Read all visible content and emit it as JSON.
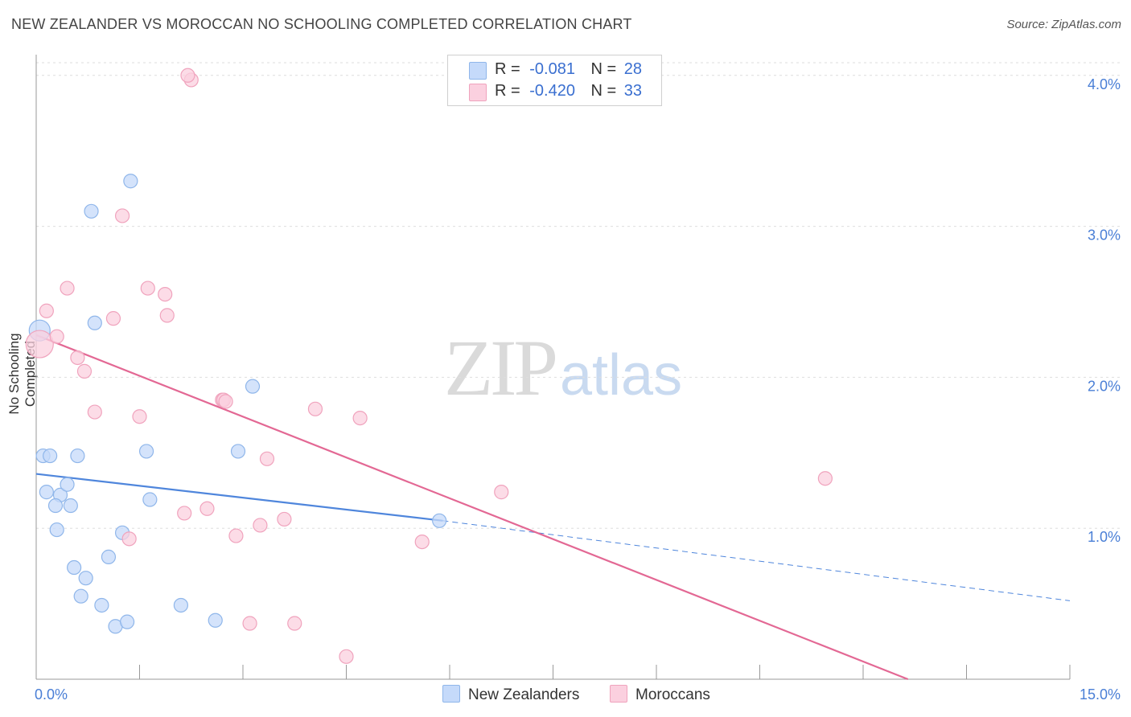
{
  "title": "NEW ZEALANDER VS MOROCCAN NO SCHOOLING COMPLETED CORRELATION CHART",
  "source": "Source: ZipAtlas.com",
  "watermark": {
    "zip": "ZIP",
    "atlas": "atlas"
  },
  "legend": {
    "r_label": "R =",
    "n_label": "N =",
    "rows": [
      {
        "r": "-0.081",
        "n": "28",
        "color": "#8fb6ea",
        "fill": "#c5dafa"
      },
      {
        "r": "-0.420",
        "n": "33",
        "color": "#f0a3bd",
        "fill": "#fbd0df"
      }
    ]
  },
  "bottom_legend": [
    {
      "label": "New Zealanders",
      "color": "#8fb6ea",
      "fill": "#c5dafa"
    },
    {
      "label": "Moroccans",
      "color": "#f0a3bd",
      "fill": "#fbd0df"
    }
  ],
  "chart_data": {
    "type": "scatter",
    "title": "NEW ZEALANDER VS MOROCCAN NO SCHOOLING COMPLETED CORRELATION CHART",
    "xlabel": "",
    "ylabel": "No Schooling Completed",
    "xlim": [
      0,
      15
    ],
    "ylim": [
      0,
      4.1
    ],
    "x_tick_labels": [
      {
        "value": 0,
        "label": "0.0%"
      },
      {
        "value": 15,
        "label": "15.0%"
      }
    ],
    "y_tick_labels": [
      {
        "value": 1,
        "label": "1.0%"
      },
      {
        "value": 2,
        "label": "2.0%"
      },
      {
        "value": 3,
        "label": "3.0%"
      },
      {
        "value": 4,
        "label": "4.0%"
      }
    ],
    "x_minor_ticks": [
      0,
      1.5,
      3,
      4.5,
      6,
      7.5,
      9,
      10.5,
      12,
      13.5,
      15
    ],
    "series": [
      {
        "name": "New Zealanders",
        "color": "#4f86dc",
        "point_fill": "#c5dafa",
        "point_stroke": "#8fb6ea",
        "points": [
          [
            0.05,
            2.31
          ],
          [
            0.1,
            1.48
          ],
          [
            0.2,
            1.48
          ],
          [
            0.15,
            1.24
          ],
          [
            0.35,
            1.22
          ],
          [
            0.28,
            1.15
          ],
          [
            0.5,
            1.15
          ],
          [
            0.45,
            1.29
          ],
          [
            0.6,
            1.48
          ],
          [
            0.85,
            2.36
          ],
          [
            0.8,
            3.1
          ],
          [
            1.37,
            3.3
          ],
          [
            0.55,
            0.74
          ],
          [
            0.65,
            0.55
          ],
          [
            0.72,
            0.67
          ],
          [
            1.05,
            0.81
          ],
          [
            1.25,
            0.97
          ],
          [
            0.95,
            0.49
          ],
          [
            1.15,
            0.35
          ],
          [
            1.32,
            0.38
          ],
          [
            1.65,
            1.19
          ],
          [
            1.6,
            1.51
          ],
          [
            2.1,
            0.49
          ],
          [
            2.6,
            0.39
          ],
          [
            2.93,
            1.51
          ],
          [
            3.14,
            1.94
          ],
          [
            5.85,
            1.05
          ],
          [
            0.3,
            0.99
          ]
        ],
        "trend": {
          "x0": 0,
          "y0": 1.36,
          "x1": 5.9,
          "y1": 1.05,
          "dash_to_x": 15,
          "dash_to_y": 0.52
        }
      },
      {
        "name": "Moroccans",
        "color": "#e36894",
        "point_fill": "#fbd0df",
        "point_stroke": "#f0a3bd",
        "points": [
          [
            0.05,
            2.22
          ],
          [
            0.15,
            2.44
          ],
          [
            0.45,
            2.59
          ],
          [
            0.3,
            2.27
          ],
          [
            0.6,
            2.13
          ],
          [
            0.7,
            2.04
          ],
          [
            0.85,
            1.77
          ],
          [
            1.12,
            2.39
          ],
          [
            1.25,
            3.07
          ],
          [
            1.62,
            2.59
          ],
          [
            1.87,
            2.55
          ],
          [
            1.9,
            2.41
          ],
          [
            2.25,
            3.97
          ],
          [
            2.2,
            4.0
          ],
          [
            1.5,
            1.74
          ],
          [
            2.7,
            1.85
          ],
          [
            2.72,
            1.85
          ],
          [
            4.05,
            1.79
          ],
          [
            4.7,
            1.73
          ],
          [
            3.35,
            1.46
          ],
          [
            2.15,
            1.1
          ],
          [
            2.48,
            1.13
          ],
          [
            2.9,
            0.95
          ],
          [
            3.25,
            1.02
          ],
          [
            3.6,
            1.06
          ],
          [
            1.35,
            0.93
          ],
          [
            3.1,
            0.37
          ],
          [
            3.75,
            0.37
          ],
          [
            4.5,
            0.15
          ],
          [
            5.6,
            0.91
          ],
          [
            6.75,
            1.24
          ],
          [
            11.45,
            1.33
          ],
          [
            2.75,
            1.84
          ]
        ],
        "trend": {
          "x0": 0,
          "y0": 2.28,
          "x1": 12.65,
          "y1": 0
        }
      }
    ]
  }
}
